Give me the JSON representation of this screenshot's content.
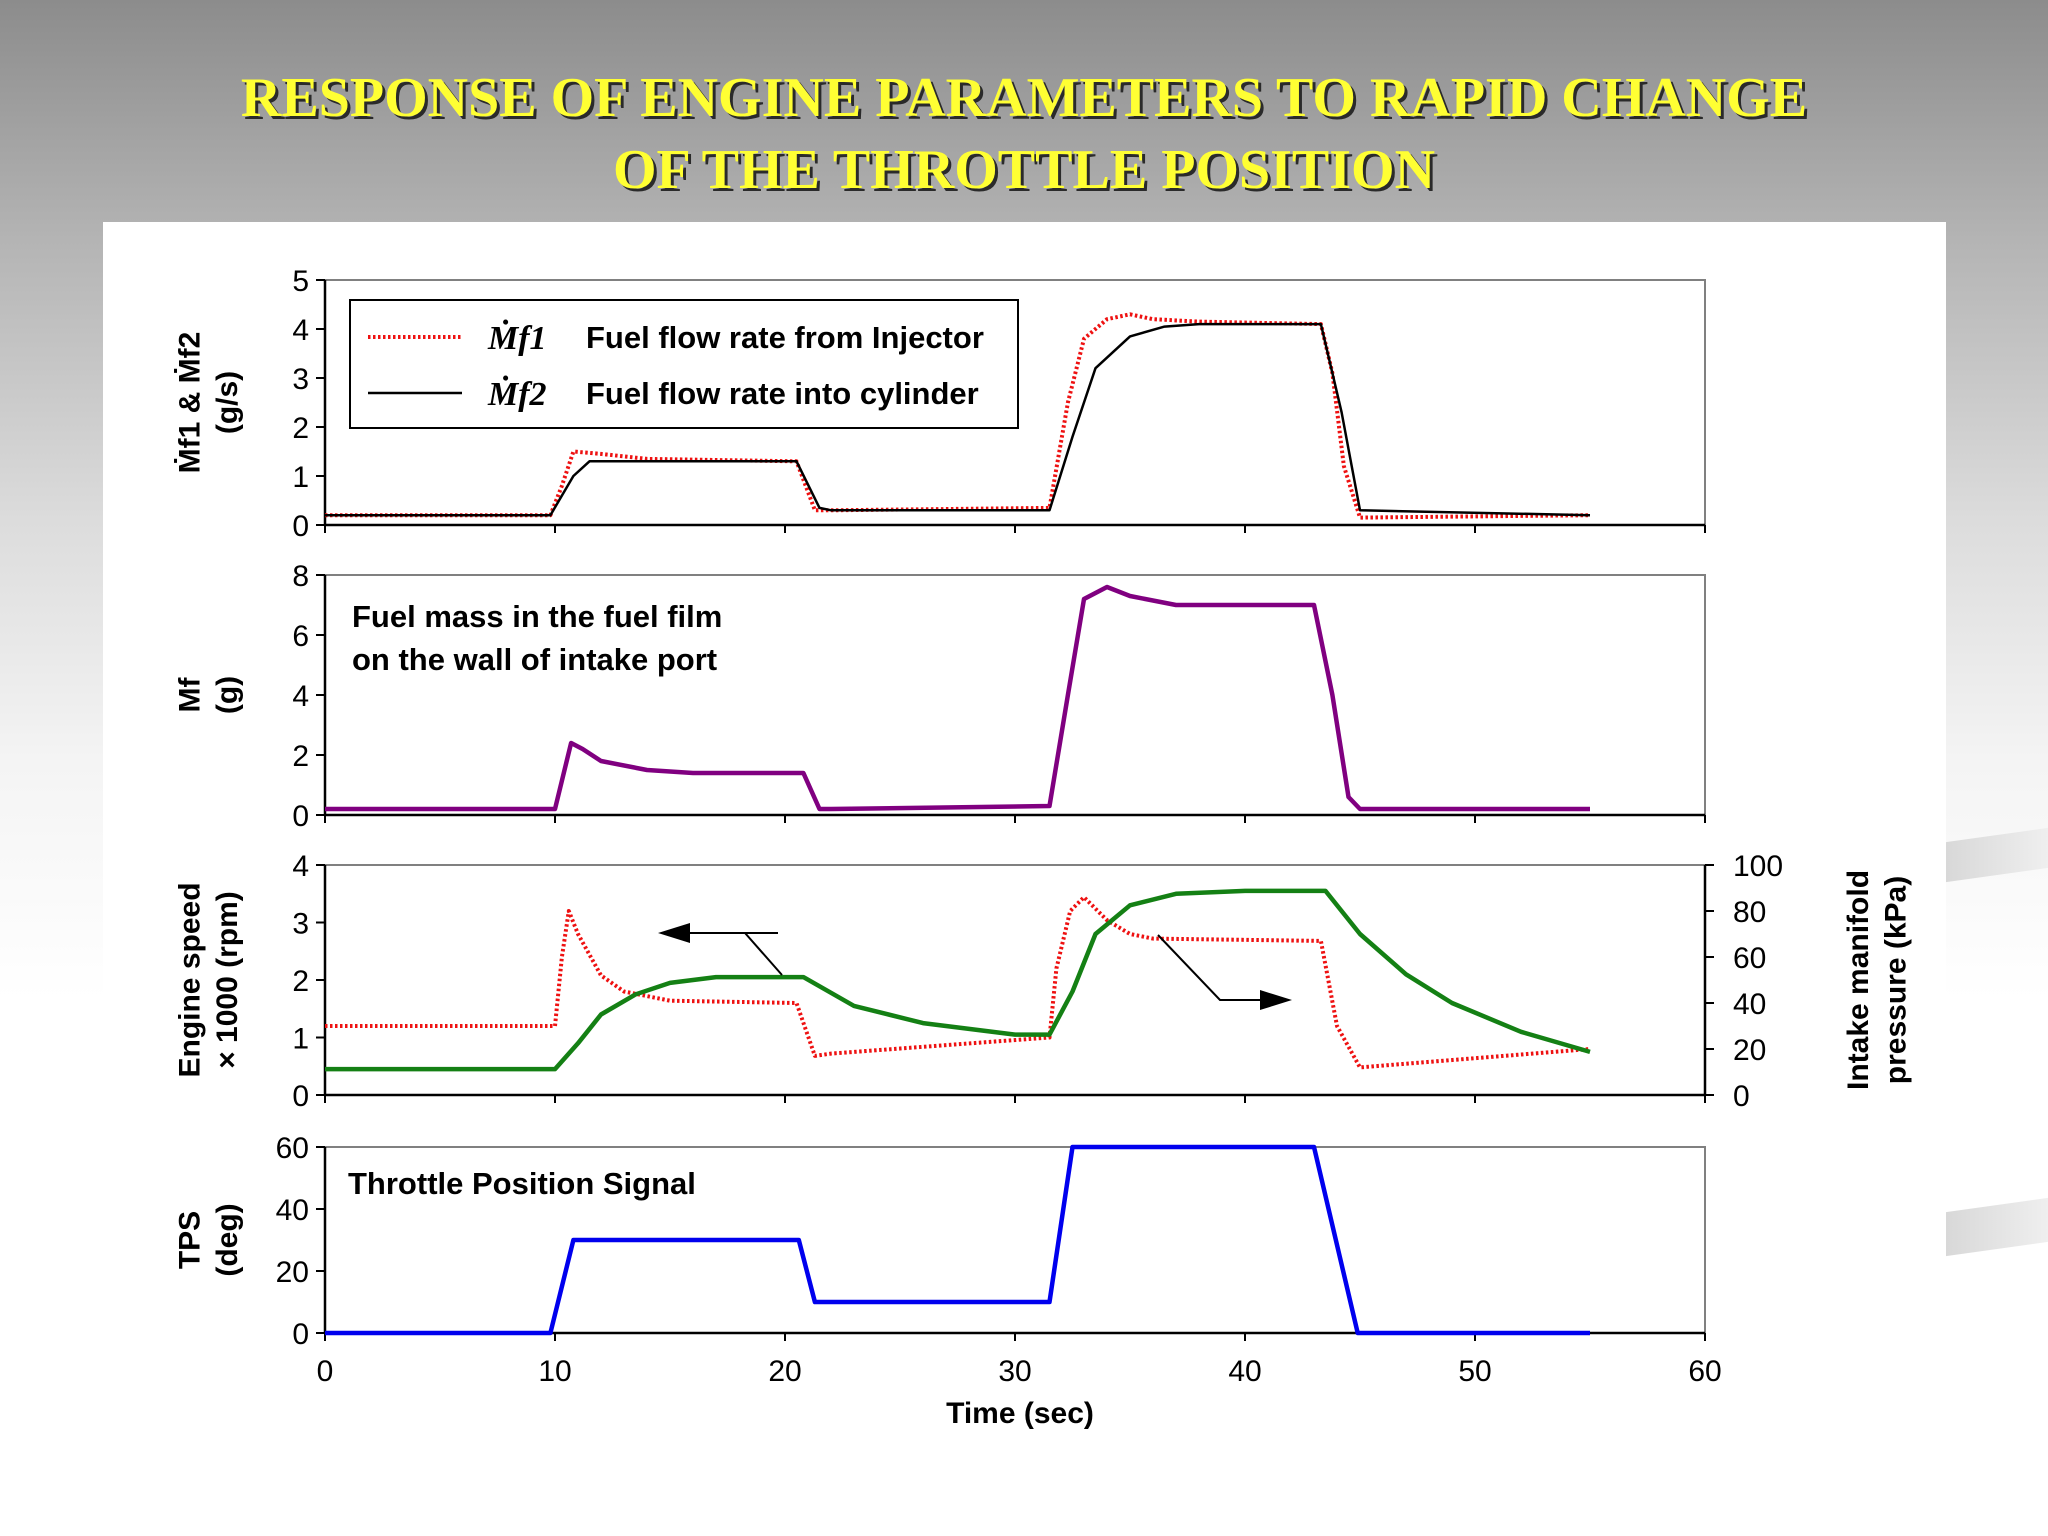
{
  "slide": {
    "title_line1": "RESPONSE OF ENGINE PARAMETERS TO RAPID CHANGE",
    "title_line2": "OF THE THROTTLE POSITION"
  },
  "colors": {
    "title": "#ffff33",
    "injector": "#ee1111",
    "cylinder": "#000000",
    "film": "#800080",
    "map": "#148014",
    "tps": "#0000ee"
  },
  "chart_data": [
    {
      "type": "line",
      "id": "fuel_flow",
      "ylabel": "Ṁf1 & Ṁf2 (g/s)",
      "ylabel_main": "Ṁf1 & Ṁf2",
      "ylabel_unit": "(g/s)",
      "ylim": [
        0,
        5
      ],
      "yticks": [
        0,
        1,
        2,
        3,
        4,
        5
      ],
      "xlim": [
        0,
        60
      ],
      "legend_position": "top-left",
      "series": [
        {
          "name": "Fuel flow rate from Injector",
          "symbol": "Ṁf1",
          "color": "#ee1111",
          "style": "dotted",
          "x": [
            0,
            9.8,
            10.3,
            10.8,
            12,
            14,
            20.5,
            21.3,
            22,
            31.5,
            32.3,
            33,
            34,
            35,
            36,
            38,
            43.3,
            43.8,
            44.3,
            45,
            55
          ],
          "y": [
            0.2,
            0.2,
            0.8,
            1.5,
            1.45,
            1.35,
            1.3,
            0.3,
            0.3,
            0.35,
            2.5,
            3.8,
            4.2,
            4.3,
            4.2,
            4.15,
            4.1,
            3.1,
            1.2,
            0.15,
            0.2
          ]
        },
        {
          "name": "Fuel flow rate into cylinder",
          "symbol": "Ṁf2",
          "color": "#000000",
          "style": "solid",
          "x": [
            0,
            9.8,
            10.8,
            11.5,
            20.5,
            21.5,
            22,
            31.5,
            32.5,
            33.5,
            35,
            36.5,
            38,
            43.3,
            44.2,
            45,
            55
          ],
          "y": [
            0.2,
            0.2,
            1.0,
            1.3,
            1.3,
            0.35,
            0.3,
            0.3,
            1.8,
            3.2,
            3.85,
            4.05,
            4.1,
            4.1,
            2.3,
            0.3,
            0.2
          ]
        }
      ]
    },
    {
      "type": "line",
      "id": "fuel_film",
      "ylabel": "Mf (g)",
      "ylabel_main": "Mf",
      "ylabel_unit": "(g)",
      "ylim": [
        0,
        8
      ],
      "yticks": [
        0,
        2,
        4,
        6,
        8
      ],
      "xlim": [
        0,
        60
      ],
      "annotation": {
        "line1": "Fuel mass in the fuel film",
        "line2": "on the wall of intake port"
      },
      "series": [
        {
          "name": "Fuel film mass",
          "color": "#800080",
          "style": "solid",
          "x": [
            0,
            10,
            10.7,
            11.2,
            12,
            14,
            16,
            20.8,
            21.5,
            22,
            31.5,
            32.3,
            33,
            34,
            35,
            37,
            43,
            43.8,
            44.5,
            45,
            55
          ],
          "y": [
            0.2,
            0.2,
            2.4,
            2.2,
            1.8,
            1.5,
            1.4,
            1.4,
            0.2,
            0.2,
            0.3,
            4,
            7.2,
            7.6,
            7.3,
            7,
            7,
            4,
            0.6,
            0.2,
            0.2
          ]
        }
      ]
    },
    {
      "type": "line",
      "id": "speed_map",
      "ylabel": "Engine speed × 1000 (rpm)",
      "ylabel_main": "Engine speed",
      "ylabel_unit": "× 1000 (rpm)",
      "ylim": [
        0,
        4
      ],
      "yticks": [
        0,
        1,
        2,
        3,
        4
      ],
      "ylabel_right": "Intake manifold pressure (kPa)",
      "ylabel_right_main": "Intake manifold",
      "ylabel_right_unit": "pressure (kPa)",
      "ylim_right": [
        0,
        100
      ],
      "yticks_right": [
        0,
        20,
        40,
        60,
        80,
        100
      ],
      "xlim": [
        0,
        60
      ],
      "series": [
        {
          "name": "Engine speed",
          "axis": "right",
          "color": "#ee1111",
          "style": "dotted",
          "x": [
            0,
            10,
            10.3,
            10.6,
            11,
            12,
            13,
            15,
            20.5,
            21.3,
            22,
            31.5,
            31.8,
            32.4,
            33,
            34,
            35,
            36,
            43.3,
            44,
            45,
            55
          ],
          "y": [
            30,
            30,
            60,
            80,
            70,
            52,
            45,
            41,
            40,
            17,
            18,
            25,
            55,
            80,
            86,
            76,
            70,
            68,
            67,
            30,
            12,
            20
          ]
        },
        {
          "name": "Intake manifold pressure",
          "axis": "left",
          "color": "#148014",
          "style": "solid",
          "x": [
            0,
            10,
            11,
            12,
            13.5,
            15,
            17,
            20.8,
            23,
            26,
            30,
            31.5,
            32.5,
            33.5,
            35,
            37,
            40,
            43.5,
            45,
            47,
            49,
            52,
            55
          ],
          "y": [
            0.45,
            0.45,
            0.9,
            1.4,
            1.75,
            1.95,
            2.05,
            2.05,
            1.55,
            1.25,
            1.05,
            1.05,
            1.8,
            2.8,
            3.3,
            3.5,
            3.55,
            3.55,
            2.8,
            2.1,
            1.6,
            1.1,
            0.75
          ]
        }
      ],
      "arrows": [
        {
          "points_to": "left axis"
        },
        {
          "points_to": "right axis"
        }
      ]
    },
    {
      "type": "line",
      "id": "tps",
      "ylabel": "TPS (deg)",
      "ylabel_main": "TPS",
      "ylabel_unit": "(deg)",
      "ylim": [
        0,
        60
      ],
      "yticks": [
        0,
        20,
        40,
        60
      ],
      "xlim": [
        0,
        60
      ],
      "xticks": [
        0,
        10,
        20,
        30,
        40,
        50,
        60
      ],
      "xlabel": "Time (sec)",
      "annotation": {
        "line1": "Throttle  Position Signal"
      },
      "series": [
        {
          "name": "Throttle Position Signal",
          "color": "#0000ee",
          "style": "solid",
          "x": [
            0,
            9.8,
            10.8,
            20.6,
            21.3,
            31.5,
            32.5,
            43,
            44.9,
            55
          ],
          "y": [
            0,
            0,
            30,
            30,
            10,
            10,
            60,
            60,
            0,
            0
          ]
        }
      ]
    }
  ]
}
